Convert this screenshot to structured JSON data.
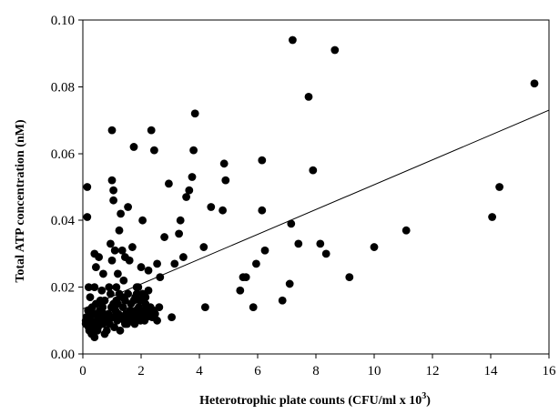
{
  "chart_data": {
    "type": "scatter",
    "title": "",
    "xlabel": "Heterotrophic plate counts (CFU/ml x 10",
    "xlabel_sup": "3",
    "xlabel_suffix": ")",
    "ylabel": "Total ATP concentration (nM)",
    "xlim": [
      0,
      16
    ],
    "ylim": [
      0,
      0.1
    ],
    "x_ticks": [
      0,
      2,
      4,
      6,
      8,
      10,
      12,
      14,
      16
    ],
    "y_ticks": [
      0.0,
      0.02,
      0.04,
      0.06,
      0.08,
      0.1
    ],
    "x_tick_labels": [
      "0",
      "2",
      "4",
      "6",
      "8",
      "10",
      "12",
      "14",
      "16"
    ],
    "y_tick_labels": [
      "0.00",
      "0.02",
      "0.04",
      "0.06",
      "0.08",
      "0.10"
    ],
    "grid": false,
    "marker_color": "#000000",
    "trendline": {
      "x": [
        0,
        16
      ],
      "y": [
        0.0135,
        0.073
      ]
    },
    "points": [
      {
        "x": 0.15,
        "y": 0.05
      },
      {
        "x": 0.15,
        "y": 0.041
      },
      {
        "x": 0.2,
        "y": 0.02
      },
      {
        "x": 0.25,
        "y": 0.017
      },
      {
        "x": 0.1,
        "y": 0.01
      },
      {
        "x": 0.2,
        "y": 0.008
      },
      {
        "x": 0.3,
        "y": 0.006
      },
      {
        "x": 0.4,
        "y": 0.005
      },
      {
        "x": 0.5,
        "y": 0.007
      },
      {
        "x": 0.35,
        "y": 0.012
      },
      {
        "x": 0.45,
        "y": 0.026
      },
      {
        "x": 0.4,
        "y": 0.03
      },
      {
        "x": 0.55,
        "y": 0.029
      },
      {
        "x": 0.6,
        "y": 0.016
      },
      {
        "x": 0.65,
        "y": 0.019
      },
      {
        "x": 0.7,
        "y": 0.009
      },
      {
        "x": 0.8,
        "y": 0.011
      },
      {
        "x": 0.75,
        "y": 0.006
      },
      {
        "x": 0.9,
        "y": 0.02
      },
      {
        "x": 0.95,
        "y": 0.033
      },
      {
        "x": 1.0,
        "y": 0.052
      },
      {
        "x": 1.05,
        "y": 0.049
      },
      {
        "x": 1.05,
        "y": 0.046
      },
      {
        "x": 1.0,
        "y": 0.067
      },
      {
        "x": 1.1,
        "y": 0.031
      },
      {
        "x": 1.15,
        "y": 0.02
      },
      {
        "x": 1.2,
        "y": 0.015
      },
      {
        "x": 1.25,
        "y": 0.037
      },
      {
        "x": 1.3,
        "y": 0.042
      },
      {
        "x": 1.35,
        "y": 0.031
      },
      {
        "x": 1.4,
        "y": 0.022
      },
      {
        "x": 1.45,
        "y": 0.009
      },
      {
        "x": 1.55,
        "y": 0.044
      },
      {
        "x": 1.6,
        "y": 0.028
      },
      {
        "x": 1.7,
        "y": 0.032
      },
      {
        "x": 1.75,
        "y": 0.062
      },
      {
        "x": 1.8,
        "y": 0.017
      },
      {
        "x": 1.9,
        "y": 0.02
      },
      {
        "x": 2.0,
        "y": 0.026
      },
      {
        "x": 2.05,
        "y": 0.04
      },
      {
        "x": 2.15,
        "y": 0.015
      },
      {
        "x": 2.25,
        "y": 0.025
      },
      {
        "x": 2.35,
        "y": 0.067
      },
      {
        "x": 2.45,
        "y": 0.061
      },
      {
        "x": 2.55,
        "y": 0.027
      },
      {
        "x": 2.65,
        "y": 0.023
      },
      {
        "x": 2.8,
        "y": 0.035
      },
      {
        "x": 2.95,
        "y": 0.051
      },
      {
        "x": 3.05,
        "y": 0.011
      },
      {
        "x": 3.15,
        "y": 0.027
      },
      {
        "x": 3.3,
        "y": 0.036
      },
      {
        "x": 3.35,
        "y": 0.04
      },
      {
        "x": 3.45,
        "y": 0.029
      },
      {
        "x": 3.55,
        "y": 0.047
      },
      {
        "x": 3.65,
        "y": 0.049
      },
      {
        "x": 3.75,
        "y": 0.053
      },
      {
        "x": 3.8,
        "y": 0.061
      },
      {
        "x": 3.85,
        "y": 0.072
      },
      {
        "x": 4.15,
        "y": 0.032
      },
      {
        "x": 4.2,
        "y": 0.014
      },
      {
        "x": 4.4,
        "y": 0.044
      },
      {
        "x": 4.8,
        "y": 0.043
      },
      {
        "x": 4.85,
        "y": 0.057
      },
      {
        "x": 4.9,
        "y": 0.052
      },
      {
        "x": 5.4,
        "y": 0.019
      },
      {
        "x": 5.5,
        "y": 0.023
      },
      {
        "x": 5.6,
        "y": 0.023
      },
      {
        "x": 5.85,
        "y": 0.014
      },
      {
        "x": 5.95,
        "y": 0.027
      },
      {
        "x": 6.15,
        "y": 0.058
      },
      {
        "x": 6.15,
        "y": 0.043
      },
      {
        "x": 6.25,
        "y": 0.031
      },
      {
        "x": 6.85,
        "y": 0.016
      },
      {
        "x": 7.1,
        "y": 0.021
      },
      {
        "x": 7.15,
        "y": 0.039
      },
      {
        "x": 7.2,
        "y": 0.094
      },
      {
        "x": 7.4,
        "y": 0.033
      },
      {
        "x": 7.75,
        "y": 0.077
      },
      {
        "x": 7.9,
        "y": 0.055
      },
      {
        "x": 8.15,
        "y": 0.033
      },
      {
        "x": 8.35,
        "y": 0.03
      },
      {
        "x": 8.65,
        "y": 0.091
      },
      {
        "x": 9.15,
        "y": 0.023
      },
      {
        "x": 10.0,
        "y": 0.032
      },
      {
        "x": 11.1,
        "y": 0.037
      },
      {
        "x": 14.05,
        "y": 0.041
      },
      {
        "x": 14.3,
        "y": 0.05
      },
      {
        "x": 15.5,
        "y": 0.081
      },
      {
        "x": 0.1,
        "y": 0.009
      },
      {
        "x": 0.12,
        "y": 0.011
      },
      {
        "x": 0.18,
        "y": 0.013
      },
      {
        "x": 0.22,
        "y": 0.007
      },
      {
        "x": 0.28,
        "y": 0.01
      },
      {
        "x": 0.32,
        "y": 0.014
      },
      {
        "x": 0.38,
        "y": 0.009
      },
      {
        "x": 0.42,
        "y": 0.012
      },
      {
        "x": 0.48,
        "y": 0.01
      },
      {
        "x": 0.52,
        "y": 0.008
      },
      {
        "x": 0.58,
        "y": 0.013
      },
      {
        "x": 0.62,
        "y": 0.011
      },
      {
        "x": 0.68,
        "y": 0.014
      },
      {
        "x": 0.72,
        "y": 0.012
      },
      {
        "x": 0.78,
        "y": 0.01
      },
      {
        "x": 0.82,
        "y": 0.007
      },
      {
        "x": 0.88,
        "y": 0.012
      },
      {
        "x": 0.92,
        "y": 0.009
      },
      {
        "x": 0.98,
        "y": 0.014
      },
      {
        "x": 1.02,
        "y": 0.011
      },
      {
        "x": 1.08,
        "y": 0.008
      },
      {
        "x": 1.12,
        "y": 0.013
      },
      {
        "x": 1.18,
        "y": 0.01
      },
      {
        "x": 1.22,
        "y": 0.012
      },
      {
        "x": 1.28,
        "y": 0.007
      },
      {
        "x": 1.32,
        "y": 0.011
      },
      {
        "x": 1.38,
        "y": 0.014
      },
      {
        "x": 1.42,
        "y": 0.01
      },
      {
        "x": 1.48,
        "y": 0.012
      },
      {
        "x": 1.52,
        "y": 0.009
      },
      {
        "x": 1.58,
        "y": 0.011
      },
      {
        "x": 1.62,
        "y": 0.013
      },
      {
        "x": 1.68,
        "y": 0.01
      },
      {
        "x": 1.72,
        "y": 0.012
      },
      {
        "x": 1.78,
        "y": 0.009
      },
      {
        "x": 1.82,
        "y": 0.013
      },
      {
        "x": 1.88,
        "y": 0.011
      },
      {
        "x": 1.92,
        "y": 0.014
      },
      {
        "x": 1.98,
        "y": 0.01
      },
      {
        "x": 2.02,
        "y": 0.012
      },
      {
        "x": 2.08,
        "y": 0.013
      },
      {
        "x": 2.12,
        "y": 0.01
      },
      {
        "x": 2.18,
        "y": 0.011
      },
      {
        "x": 2.22,
        "y": 0.013
      },
      {
        "x": 2.28,
        "y": 0.012
      },
      {
        "x": 2.32,
        "y": 0.014
      },
      {
        "x": 2.38,
        "y": 0.011
      },
      {
        "x": 2.42,
        "y": 0.013
      },
      {
        "x": 2.48,
        "y": 0.012
      },
      {
        "x": 2.55,
        "y": 0.01
      },
      {
        "x": 2.62,
        "y": 0.014
      },
      {
        "x": 0.25,
        "y": 0.012
      },
      {
        "x": 0.35,
        "y": 0.008
      },
      {
        "x": 0.45,
        "y": 0.015
      },
      {
        "x": 0.55,
        "y": 0.012
      },
      {
        "x": 0.65,
        "y": 0.009
      },
      {
        "x": 0.75,
        "y": 0.016
      },
      {
        "x": 0.85,
        "y": 0.011
      },
      {
        "x": 0.95,
        "y": 0.018
      },
      {
        "x": 1.05,
        "y": 0.015
      },
      {
        "x": 1.15,
        "y": 0.016
      },
      {
        "x": 1.25,
        "y": 0.018
      },
      {
        "x": 1.35,
        "y": 0.017
      },
      {
        "x": 1.45,
        "y": 0.016
      },
      {
        "x": 1.55,
        "y": 0.018
      },
      {
        "x": 1.65,
        "y": 0.015
      },
      {
        "x": 1.75,
        "y": 0.016
      },
      {
        "x": 1.85,
        "y": 0.018
      },
      {
        "x": 1.95,
        "y": 0.016
      },
      {
        "x": 2.05,
        "y": 0.018
      },
      {
        "x": 2.15,
        "y": 0.017
      },
      {
        "x": 2.25,
        "y": 0.019
      },
      {
        "x": 0.4,
        "y": 0.02
      },
      {
        "x": 0.7,
        "y": 0.024
      },
      {
        "x": 1.0,
        "y": 0.028
      },
      {
        "x": 1.2,
        "y": 0.024
      },
      {
        "x": 1.45,
        "y": 0.029
      },
      {
        "x": 1.85,
        "y": 0.02
      }
    ]
  }
}
